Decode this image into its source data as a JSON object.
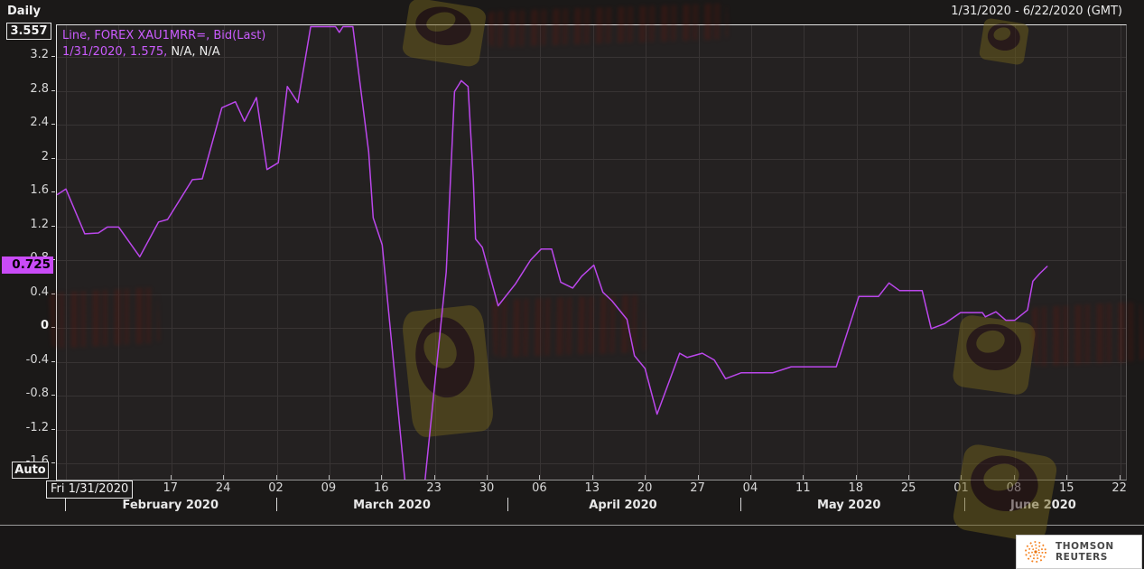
{
  "window": {
    "interval_label": "Daily",
    "date_range": "1/31/2020 - 6/22/2020 (GMT)"
  },
  "colors": {
    "background": "#1b1918",
    "plot_background": "#242121",
    "grid": "#383434",
    "line": "#bb47ec",
    "legend_magenta": "#cb5cff",
    "axis_text": "#d8d8d8",
    "last_box_background": "#c94bf7",
    "thomson_orange": "#f58220"
  },
  "axis_markers": {
    "max_value": "3.557",
    "last_value": "0.725",
    "auto_label": "Auto",
    "first_date_label": "Fri 1/31/2020"
  },
  "legend": {
    "line1": "Line, FOREX XAU1MRR=, Bid(Last)",
    "line2_magenta": "1/31/2020, 1.575,",
    "line2_white": " N/A, N/A"
  },
  "branding": {
    "logo_text": "THOMSON REUTERS"
  },
  "chart_data": {
    "type": "line",
    "title": "FOREX XAU1MRR= Bid(Last), Daily",
    "legend_position": "top-left",
    "grid": true,
    "x_axis": {
      "start_date": "1/31/2020",
      "end_date": "6/22/2020",
      "unit": "days_since_1/31/2020",
      "tick_days": [
        17,
        24,
        31,
        38,
        45,
        52,
        59,
        66,
        73,
        80,
        87,
        94,
        101,
        108,
        115,
        122,
        129,
        136,
        143
      ],
      "tick_labels": [
        "17",
        "24",
        "02",
        "09",
        "16",
        "23",
        "30",
        "06",
        "13",
        "20",
        "27",
        "04",
        "11",
        "18",
        "25",
        "01",
        "08",
        "15",
        "22"
      ],
      "minor_grid_days": [
        3,
        10
      ],
      "months": [
        {
          "label": "February 2020",
          "sep_day": 3.0,
          "center_day": 17.0
        },
        {
          "label": "March 2020",
          "sep_day": 31.1,
          "center_day": 46.4
        },
        {
          "label": "April 2020",
          "sep_day": 61.8,
          "center_day": 77.1
        },
        {
          "label": "May 2020",
          "sep_day": 92.7,
          "center_day": 107.1
        },
        {
          "label": "June 2020",
          "sep_day": 122.4,
          "center_day": 132.9
        }
      ]
    },
    "y_axis": {
      "tick_values": [
        3.2,
        2.8,
        2.4,
        2.0,
        1.6,
        1.2,
        0.8,
        0.4,
        0,
        -0.4,
        -0.8,
        -1.2,
        -1.6
      ],
      "tick_labels": [
        "3.2",
        "2.8",
        "2.4",
        "2",
        "1.6",
        "1.2",
        "0.8",
        "0.4",
        "0",
        "-0.4",
        "-0.8",
        "-1.2",
        "-1.6"
      ],
      "shown_range": [
        -1.79,
        3.573
      ],
      "max_marker": 3.557,
      "last_marker": 0.725
    },
    "series": [
      {
        "name": "FOREX XAU1MRR=, Bid(Last)",
        "color": "#bb47ec",
        "first_point": {
          "date": "1/31/2020",
          "value": 1.575
        },
        "last_point_value": 0.725,
        "points": [
          [
            1.9,
            1.575
          ],
          [
            3.0,
            1.64
          ],
          [
            5.5,
            1.11
          ],
          [
            7.3,
            1.12
          ],
          [
            8.5,
            1.19
          ],
          [
            10.0,
            1.19
          ],
          [
            12.8,
            0.84
          ],
          [
            15.3,
            1.25
          ],
          [
            16.5,
            1.28
          ],
          [
            19.8,
            1.75
          ],
          [
            21.1,
            1.76
          ],
          [
            23.7,
            2.6
          ],
          [
            25.5,
            2.67
          ],
          [
            26.7,
            2.44
          ],
          [
            28.3,
            2.72
          ],
          [
            29.7,
            1.87
          ],
          [
            31.2,
            1.95
          ],
          [
            32.4,
            2.85
          ],
          [
            33.8,
            2.66
          ],
          [
            35.5,
            3.557
          ],
          [
            38.8,
            3.557
          ],
          [
            39.3,
            3.49
          ],
          [
            39.8,
            3.557
          ],
          [
            41.1,
            3.557
          ],
          [
            43.2,
            2.08
          ],
          [
            43.8,
            1.3
          ],
          [
            45.0,
            0.98
          ],
          [
            48.0,
            -1.79
          ],
          [
            49.2,
            -2.3
          ],
          [
            50.7,
            -1.79
          ],
          [
            53.5,
            0.66
          ],
          [
            54.6,
            2.79
          ],
          [
            55.5,
            2.92
          ],
          [
            56.4,
            2.85
          ],
          [
            57.1,
            1.76
          ],
          [
            57.4,
            1.05
          ],
          [
            58.3,
            0.95
          ],
          [
            60.4,
            0.26
          ],
          [
            62.7,
            0.52
          ],
          [
            64.7,
            0.8
          ],
          [
            66.1,
            0.93
          ],
          [
            67.5,
            0.93
          ],
          [
            68.7,
            0.54
          ],
          [
            70.3,
            0.47
          ],
          [
            71.5,
            0.61
          ],
          [
            73.1,
            0.74
          ],
          [
            74.3,
            0.42
          ],
          [
            75.5,
            0.32
          ],
          [
            77.5,
            0.1
          ],
          [
            78.5,
            -0.33
          ],
          [
            79.9,
            -0.48
          ],
          [
            81.5,
            -1.02
          ],
          [
            84.5,
            -0.3
          ],
          [
            85.5,
            -0.35
          ],
          [
            87.5,
            -0.3
          ],
          [
            89.1,
            -0.38
          ],
          [
            90.6,
            -0.6
          ],
          [
            92.7,
            -0.53
          ],
          [
            96.9,
            -0.53
          ],
          [
            99.3,
            -0.46
          ],
          [
            105.3,
            -0.46
          ],
          [
            108.3,
            0.37
          ],
          [
            110.9,
            0.37
          ],
          [
            112.3,
            0.53
          ],
          [
            113.7,
            0.44
          ],
          [
            116.7,
            0.44
          ],
          [
            117.9,
            -0.01
          ],
          [
            119.7,
            0.05
          ],
          [
            121.8,
            0.18
          ],
          [
            124.7,
            0.18
          ],
          [
            125.1,
            0.13
          ],
          [
            126.5,
            0.19
          ],
          [
            127.8,
            0.09
          ],
          [
            129.0,
            0.09
          ],
          [
            130.7,
            0.21
          ],
          [
            131.4,
            0.55
          ],
          [
            132.3,
            0.64
          ],
          [
            133.3,
            0.725
          ]
        ]
      }
    ]
  }
}
